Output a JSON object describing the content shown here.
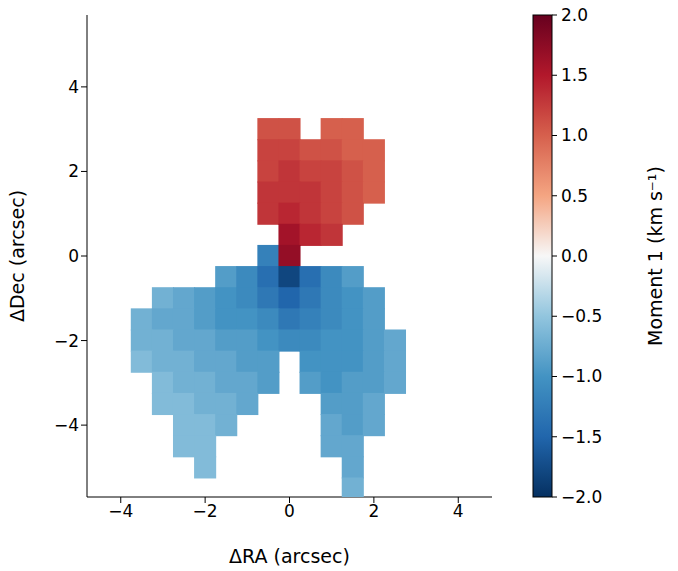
{
  "chart_data": {
    "type": "heatmap",
    "x_label": "ΔRA (arcsec)",
    "y_label": "ΔDec (arcsec)",
    "xlim": [
      -4.8,
      4.8
    ],
    "xticks": [
      {
        "value": -4,
        "label": "−4"
      },
      {
        "value": -2,
        "label": "−2"
      },
      0,
      2,
      4
    ],
    "ylim": [
      -5.7,
      5.7
    ],
    "yticks": [
      {
        "value": -4,
        "label": "−4"
      },
      {
        "value": -2,
        "label": "−2"
      },
      0,
      2,
      4
    ],
    "x": [
      -4.5,
      -4,
      -3.5,
      -3,
      -2.5,
      -2,
      -1.5,
      -1,
      -0.5,
      0,
      0.5,
      1,
      1.5,
      2,
      2.5,
      3,
      3.5,
      4,
      4.5
    ],
    "y": [
      5.5,
      5,
      4.5,
      4,
      3.5,
      3,
      2.5,
      2,
      1.5,
      1,
      0.5,
      0,
      -0.5,
      -1,
      -1.5,
      -2,
      -2.5,
      -3,
      -3.5,
      -4,
      -4.5,
      -5,
      -5.5
    ],
    "cells": [
      [
        null,
        null,
        null,
        null,
        null,
        null,
        null,
        null,
        null,
        null,
        null,
        null,
        null,
        null,
        null,
        null,
        null,
        null,
        null
      ],
      [
        null,
        null,
        null,
        null,
        null,
        null,
        null,
        null,
        null,
        null,
        null,
        null,
        null,
        null,
        null,
        null,
        null,
        null,
        null
      ],
      [
        null,
        null,
        null,
        null,
        null,
        null,
        null,
        null,
        null,
        null,
        null,
        null,
        null,
        null,
        null,
        null,
        null,
        null,
        null
      ],
      [
        null,
        null,
        null,
        null,
        null,
        null,
        null,
        null,
        null,
        null,
        null,
        null,
        null,
        null,
        null,
        null,
        null,
        null,
        null
      ],
      [
        null,
        null,
        null,
        null,
        null,
        null,
        null,
        null,
        null,
        null,
        null,
        null,
        null,
        null,
        null,
        null,
        null,
        null,
        null
      ],
      [
        null,
        null,
        null,
        null,
        null,
        null,
        null,
        null,
        1.1,
        1.1,
        null,
        1.0,
        1.0,
        null,
        null,
        null,
        null,
        null,
        null
      ],
      [
        null,
        null,
        null,
        null,
        null,
        null,
        null,
        null,
        1.2,
        1.2,
        1.1,
        1.1,
        1.0,
        1.0,
        null,
        null,
        null,
        null,
        null
      ],
      [
        null,
        null,
        null,
        null,
        null,
        null,
        null,
        null,
        1.2,
        1.3,
        1.2,
        1.2,
        1.1,
        1.0,
        null,
        null,
        null,
        null,
        null
      ],
      [
        null,
        null,
        null,
        null,
        null,
        null,
        null,
        null,
        1.3,
        1.3,
        1.3,
        1.2,
        1.1,
        1.0,
        null,
        null,
        null,
        null,
        null
      ],
      [
        null,
        null,
        null,
        null,
        null,
        null,
        null,
        null,
        1.3,
        1.4,
        1.3,
        1.2,
        1.1,
        null,
        null,
        null,
        null,
        null,
        null
      ],
      [
        null,
        null,
        null,
        null,
        null,
        null,
        null,
        null,
        null,
        1.6,
        1.4,
        1.3,
        null,
        null,
        null,
        null,
        null,
        null,
        null
      ],
      [
        null,
        null,
        null,
        null,
        null,
        null,
        null,
        null,
        -1.2,
        1.7,
        null,
        null,
        null,
        null,
        null,
        null,
        null,
        null,
        null
      ],
      [
        null,
        null,
        null,
        null,
        null,
        null,
        -0.9,
        -1.1,
        -1.4,
        -1.8,
        -1.4,
        -1.1,
        -0.9,
        null,
        null,
        null,
        null,
        null,
        null
      ],
      [
        null,
        null,
        null,
        -0.7,
        -0.8,
        -0.9,
        -1.0,
        -1.1,
        -1.3,
        -1.5,
        -1.3,
        -1.1,
        -1.0,
        -0.9,
        null,
        null,
        null,
        null,
        null
      ],
      [
        null,
        null,
        -0.7,
        -0.8,
        -0.8,
        -0.9,
        -1.0,
        -1.0,
        -1.1,
        -1.3,
        -1.2,
        -1.1,
        -1.0,
        -0.9,
        null,
        null,
        null,
        null,
        null
      ],
      [
        null,
        null,
        -0.7,
        -0.7,
        -0.8,
        -0.8,
        -0.9,
        -0.9,
        -1.0,
        -1.1,
        -1.1,
        -1.0,
        -1.0,
        -0.9,
        -0.8,
        null,
        null,
        null,
        null
      ],
      [
        null,
        null,
        -0.6,
        -0.7,
        -0.7,
        -0.8,
        -0.8,
        -0.9,
        -0.9,
        null,
        -1.0,
        -1.0,
        -1.0,
        -0.9,
        -0.8,
        null,
        null,
        null,
        null
      ],
      [
        null,
        null,
        null,
        -0.6,
        -0.7,
        -0.7,
        -0.8,
        -0.8,
        -0.9,
        null,
        -0.9,
        -1.0,
        -0.9,
        -0.9,
        -0.8,
        null,
        null,
        null,
        null
      ],
      [
        null,
        null,
        null,
        -0.6,
        -0.6,
        -0.7,
        -0.7,
        -0.8,
        null,
        null,
        null,
        -0.9,
        -0.9,
        -0.8,
        null,
        null,
        null,
        null,
        null
      ],
      [
        null,
        null,
        null,
        null,
        -0.6,
        -0.6,
        -0.7,
        null,
        null,
        null,
        null,
        -0.8,
        -0.9,
        -0.8,
        null,
        null,
        null,
        null,
        null
      ],
      [
        null,
        null,
        null,
        null,
        -0.6,
        -0.6,
        null,
        null,
        null,
        null,
        null,
        -0.8,
        -0.8,
        null,
        null,
        null,
        null,
        null,
        null
      ],
      [
        null,
        null,
        null,
        null,
        null,
        -0.6,
        null,
        null,
        null,
        null,
        null,
        null,
        -0.8,
        null,
        null,
        null,
        null,
        null,
        null
      ],
      [
        null,
        null,
        null,
        null,
        null,
        null,
        null,
        null,
        null,
        null,
        null,
        null,
        -0.7,
        null,
        null,
        null,
        null,
        null,
        null
      ]
    ],
    "colorbar": {
      "label": "Moment 1 (km s⁻¹)",
      "range": [
        -2,
        2
      ],
      "ticks": [
        {
          "value": -2,
          "label": "−2.0"
        },
        {
          "value": -1.5,
          "label": "−1.5"
        },
        {
          "value": -1,
          "label": "−1.0"
        },
        {
          "value": -0.5,
          "label": "−0.5"
        },
        {
          "value": 0,
          "label": "0.0"
        },
        {
          "value": 0.5,
          "label": "0.5"
        },
        {
          "value": 1,
          "label": "1.0"
        },
        {
          "value": 1.5,
          "label": "1.5"
        },
        {
          "value": 2,
          "label": "2.0"
        }
      ]
    }
  }
}
